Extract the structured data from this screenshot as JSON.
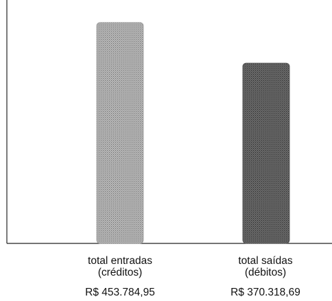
{
  "chart_data": {
    "type": "bar",
    "categories": [
      {
        "line1": "total entradas",
        "line2": "(créditos)"
      },
      {
        "line1": "total saídas",
        "line2": "(débitos)"
      }
    ],
    "values": [
      453784.95,
      370318.69
    ],
    "value_labels": [
      "R$ 453.784,95",
      "R$ 370.318,69"
    ],
    "bar_colors": [
      "#a3a3a3",
      "#595959"
    ],
    "title": "",
    "xlabel": "",
    "ylabel": "",
    "ylim": [
      0,
      500000
    ],
    "grid": false,
    "legend": "none"
  }
}
